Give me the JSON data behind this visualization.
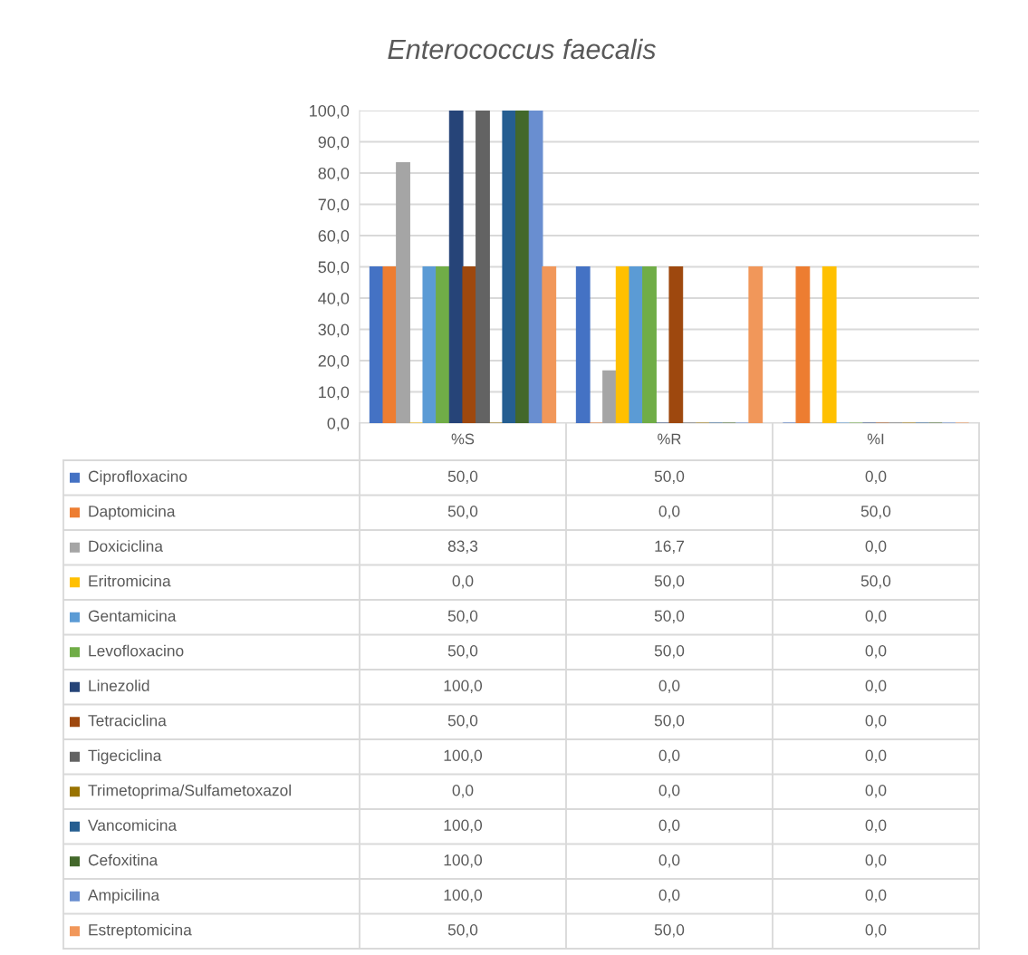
{
  "chart_data": {
    "type": "bar",
    "title": "Enterococcus faecalis",
    "categories": [
      "%S",
      "%R",
      "%I"
    ],
    "series": [
      {
        "name": "Ciprofloxacino",
        "color": "#4472c4",
        "values": [
          50.0,
          50.0,
          0.0
        ],
        "value_labels": [
          "50,0",
          "50,0",
          "0,0"
        ]
      },
      {
        "name": "Daptomicina",
        "color": "#ed7d31",
        "values": [
          50.0,
          0.0,
          50.0
        ],
        "value_labels": [
          "50,0",
          "0,0",
          "50,0"
        ]
      },
      {
        "name": "Doxiciclina",
        "color": "#a5a5a5",
        "values": [
          83.3,
          16.7,
          0.0
        ],
        "value_labels": [
          "83,3",
          "16,7",
          "0,0"
        ]
      },
      {
        "name": "Eritromicina",
        "color": "#ffc000",
        "values": [
          0.0,
          50.0,
          50.0
        ],
        "value_labels": [
          "0,0",
          "50,0",
          "50,0"
        ]
      },
      {
        "name": "Gentamicina",
        "color": "#5b9bd5",
        "values": [
          50.0,
          50.0,
          0.0
        ],
        "value_labels": [
          "50,0",
          "50,0",
          "0,0"
        ]
      },
      {
        "name": "Levofloxacino",
        "color": "#70ad47",
        "values": [
          50.0,
          50.0,
          0.0
        ],
        "value_labels": [
          "50,0",
          "50,0",
          "0,0"
        ]
      },
      {
        "name": "Linezolid",
        "color": "#264478",
        "values": [
          100.0,
          0.0,
          0.0
        ],
        "value_labels": [
          "100,0",
          "0,0",
          "0,0"
        ]
      },
      {
        "name": "Tetraciclina",
        "color": "#9e480e",
        "values": [
          50.0,
          50.0,
          0.0
        ],
        "value_labels": [
          "50,0",
          "50,0",
          "0,0"
        ]
      },
      {
        "name": "Tigeciclina",
        "color": "#636363",
        "values": [
          100.0,
          0.0,
          0.0
        ],
        "value_labels": [
          "100,0",
          "0,0",
          "0,0"
        ]
      },
      {
        "name": "Trimetoprima/Sulfametoxazol",
        "color": "#997300",
        "values": [
          0.0,
          0.0,
          0.0
        ],
        "value_labels": [
          "0,0",
          "0,0",
          "0,0"
        ]
      },
      {
        "name": "Vancomicina",
        "color": "#255e91",
        "values": [
          100.0,
          0.0,
          0.0
        ],
        "value_labels": [
          "100,0",
          "0,0",
          "0,0"
        ]
      },
      {
        "name": "Cefoxitina",
        "color": "#43682b",
        "values": [
          100.0,
          0.0,
          0.0
        ],
        "value_labels": [
          "100,0",
          "0,0",
          "0,0"
        ]
      },
      {
        "name": "Ampicilina",
        "color": "#698ed0",
        "values": [
          100.0,
          0.0,
          0.0
        ],
        "value_labels": [
          "100,0",
          "0,0",
          "0,0"
        ]
      },
      {
        "name": "Estreptomicina",
        "color": "#f1975a",
        "values": [
          50.0,
          50.0,
          0.0
        ],
        "value_labels": [
          "50,0",
          "50,0",
          "0,0"
        ]
      }
    ],
    "ylim": [
      0,
      100
    ],
    "yticks": [
      {
        "value": 0,
        "label": "0,0"
      },
      {
        "value": 10,
        "label": "10,0"
      },
      {
        "value": 20,
        "label": "20,0"
      },
      {
        "value": 30,
        "label": "30,0"
      },
      {
        "value": 40,
        "label": "40,0"
      },
      {
        "value": 50,
        "label": "50,0"
      },
      {
        "value": 60,
        "label": "60,0"
      },
      {
        "value": 70,
        "label": "70,0"
      },
      {
        "value": 80,
        "label": "80,0"
      },
      {
        "value": 90,
        "label": "90,0"
      },
      {
        "value": 100,
        "label": "100,0"
      }
    ],
    "grid": "y",
    "legend": "bottom"
  }
}
